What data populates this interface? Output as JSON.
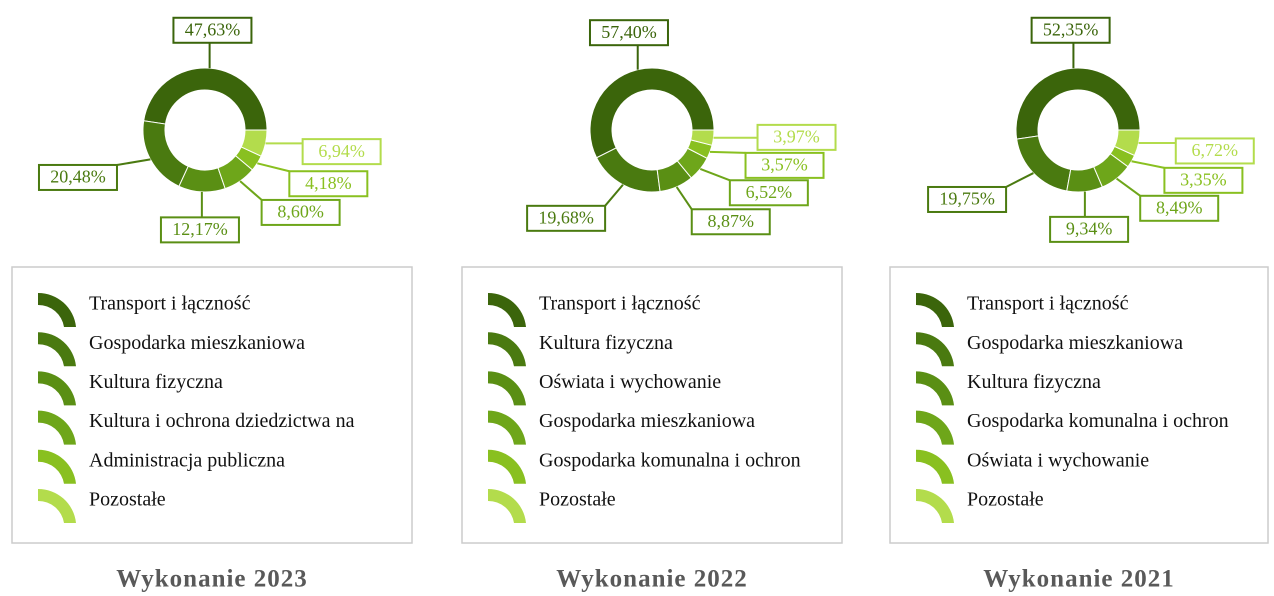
{
  "chart_data": [
    {
      "type": "pie",
      "title": "Wykonanie 2023",
      "categories": [
        "Transport i łączność",
        "Gospodarka mieszkaniowa",
        "Kultura fizyczna",
        "Kultura i ochrona dziedzictwa na",
        "Administracja publiczna",
        "Pozostałe"
      ],
      "values": [
        47.63,
        20.48,
        12.17,
        8.6,
        4.18,
        6.94
      ],
      "value_labels": [
        "47,63%",
        "20,48%",
        "12,17%",
        "8,60%",
        "4,18%",
        "6,94%"
      ],
      "colors": [
        "#3b650b",
        "#4a7a10",
        "#5a8f14",
        "#6ea61a",
        "#89c020",
        "#b3dc4c"
      ]
    },
    {
      "type": "pie",
      "title": "Wykonanie 2022",
      "categories": [
        "Transport i łączność",
        "Kultura fizyczna",
        "Oświata i wychowanie",
        "Gospodarka mieszkaniowa",
        "Gospodarka komunalna i ochron",
        "Pozostałe"
      ],
      "values": [
        57.4,
        19.68,
        8.87,
        6.52,
        3.57,
        3.97
      ],
      "value_labels": [
        "57,40%",
        "19,68%",
        "8,87%",
        "6,52%",
        "3,57%",
        "3,97%"
      ],
      "colors": [
        "#3b650b",
        "#4a7a10",
        "#5a8f14",
        "#6ea61a",
        "#89c020",
        "#b3dc4c"
      ]
    },
    {
      "type": "pie",
      "title": "Wykonanie 2021",
      "categories": [
        "Transport i łączność",
        "Gospodarka mieszkaniowa",
        "Kultura fizyczna",
        "Gospodarka komunalna i ochron",
        "Oświata i wychowanie",
        "Pozostałe"
      ],
      "values": [
        52.35,
        19.75,
        9.34,
        8.49,
        3.35,
        6.72
      ],
      "value_labels": [
        "52,35%",
        "19,75%",
        "9,34%",
        "8,49%",
        "3,35%",
        "6,72%"
      ],
      "colors": [
        "#3b650b",
        "#4a7a10",
        "#5a8f14",
        "#6ea61a",
        "#89c020",
        "#b3dc4c"
      ]
    }
  ]
}
